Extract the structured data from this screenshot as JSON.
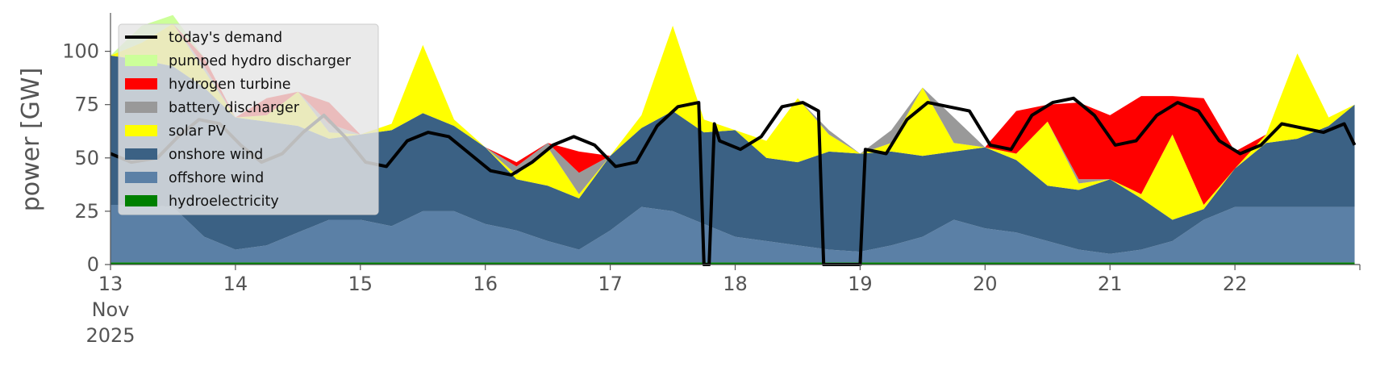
{
  "chart_data": {
    "type": "area",
    "stacked": true,
    "ylabel": "power [GW]",
    "xlabel": "",
    "ylim": [
      0,
      118
    ],
    "xlim": [
      "2025-11-13T00:00",
      "2025-11-23T00:00"
    ],
    "x_tick_labels": [
      {
        "date": "2025-11-13",
        "lines": [
          "13",
          "Nov",
          "2025"
        ]
      },
      {
        "date": "2025-11-14",
        "lines": [
          "14"
        ]
      },
      {
        "date": "2025-11-15",
        "lines": [
          "15"
        ]
      },
      {
        "date": "2025-11-16",
        "lines": [
          "16"
        ]
      },
      {
        "date": "2025-11-17",
        "lines": [
          "17"
        ]
      },
      {
        "date": "2025-11-18",
        "lines": [
          "18"
        ]
      },
      {
        "date": "2025-11-19",
        "lines": [
          "19"
        ]
      },
      {
        "date": "2025-11-20",
        "lines": [
          "20"
        ]
      },
      {
        "date": "2025-11-21",
        "lines": [
          "21"
        ]
      },
      {
        "date": "2025-11-22",
        "lines": [
          "22"
        ]
      }
    ],
    "y_ticks": [
      0,
      25,
      50,
      75,
      100
    ],
    "grid": false,
    "legend_position": "top-left",
    "x": [
      "2025-11-13T00:00",
      "2025-11-13T06:00",
      "2025-11-13T12:00",
      "2025-11-13T18:00",
      "2025-11-14T00:00",
      "2025-11-14T06:00",
      "2025-11-14T12:00",
      "2025-11-14T18:00",
      "2025-11-15T00:00",
      "2025-11-15T06:00",
      "2025-11-15T12:00",
      "2025-11-15T18:00",
      "2025-11-16T00:00",
      "2025-11-16T06:00",
      "2025-11-16T12:00",
      "2025-11-16T18:00",
      "2025-11-17T00:00",
      "2025-11-17T06:00",
      "2025-11-17T12:00",
      "2025-11-17T18:00",
      "2025-11-18T00:00",
      "2025-11-18T06:00",
      "2025-11-18T12:00",
      "2025-11-18T18:00",
      "2025-11-19T00:00",
      "2025-11-19T06:00",
      "2025-11-19T12:00",
      "2025-11-19T18:00",
      "2025-11-20T00:00",
      "2025-11-20T06:00",
      "2025-11-20T12:00",
      "2025-11-20T18:00",
      "2025-11-21T00:00",
      "2025-11-21T06:00",
      "2025-11-21T12:00",
      "2025-11-21T18:00",
      "2025-11-22T00:00",
      "2025-11-22T06:00",
      "2025-11-22T12:00",
      "2025-11-22T18:00",
      "2025-11-22T23:00"
    ],
    "series": [
      {
        "name": "hydroelectricity",
        "color": "#008000",
        "values": [
          1,
          1,
          1,
          1,
          1,
          1,
          1,
          1,
          1,
          1,
          1,
          1,
          1,
          1,
          1,
          1,
          1,
          1,
          1,
          1,
          1,
          1,
          1,
          1,
          1,
          1,
          1,
          1,
          1,
          1,
          1,
          1,
          1,
          1,
          1,
          1,
          1,
          1,
          1,
          1,
          1
        ]
      },
      {
        "name": "offshore wind",
        "color": "#5b80a6",
        "values": [
          27,
          27,
          26,
          12,
          6,
          8,
          14,
          20,
          20,
          17,
          24,
          24,
          18,
          15,
          10,
          6,
          15,
          26,
          24,
          18,
          12,
          10,
          8,
          6,
          5,
          8,
          12,
          20,
          16,
          14,
          10,
          6,
          4,
          6,
          10,
          20,
          26,
          26,
          26,
          26,
          26
        ]
      },
      {
        "name": "onshore wind",
        "color": "#3b6184",
        "values": [
          70,
          68,
          66,
          70,
          62,
          58,
          50,
          38,
          40,
          45,
          46,
          40,
          36,
          24,
          26,
          24,
          35,
          37,
          47,
          43,
          50,
          39,
          39,
          46,
          46,
          44,
          38,
          32,
          38,
          34,
          26,
          28,
          35,
          24,
          10,
          5,
          18,
          30,
          32,
          38,
          48
        ]
      },
      {
        "name": "solar PV",
        "color": "#ffff00",
        "values": [
          0,
          8,
          20,
          8,
          0,
          3,
          16,
          3,
          0,
          3,
          32,
          3,
          0,
          2,
          18,
          2,
          0,
          6,
          40,
          6,
          0,
          8,
          30,
          8,
          0,
          4,
          32,
          4,
          0,
          3,
          30,
          3,
          0,
          2,
          40,
          2,
          0,
          4,
          40,
          4,
          0
        ]
      },
      {
        "name": "battery discharger",
        "color": "#999999",
        "values": [
          0,
          0,
          0,
          2,
          0,
          0,
          0,
          4,
          0,
          0,
          0,
          0,
          0,
          4,
          2,
          10,
          0,
          0,
          0,
          0,
          0,
          0,
          0,
          2,
          0,
          6,
          0,
          12,
          0,
          0,
          0,
          2,
          0,
          0,
          0,
          0,
          0,
          0,
          0,
          0,
          0
        ]
      },
      {
        "name": "hydrogen turbine",
        "color": "#ff0000",
        "values": [
          0,
          0,
          0,
          4,
          0,
          8,
          0,
          10,
          0,
          0,
          0,
          0,
          0,
          2,
          0,
          10,
          0,
          0,
          0,
          0,
          0,
          0,
          0,
          0,
          0,
          0,
          0,
          0,
          0,
          20,
          8,
          36,
          30,
          46,
          18,
          50,
          8,
          0,
          0,
          0,
          0
        ]
      },
      {
        "name": "pumped hydro discharger",
        "color": "#ccff99",
        "values": [
          0,
          8,
          4,
          0,
          0,
          0,
          0,
          0,
          0,
          0,
          0,
          0,
          0,
          0,
          0,
          0,
          0,
          0,
          0,
          0,
          0,
          0,
          0,
          0,
          0,
          0,
          0,
          0,
          0,
          0,
          0,
          0,
          0,
          0,
          0,
          0,
          0,
          0,
          0,
          0,
          0
        ]
      }
    ],
    "line": {
      "name": "today's demand",
      "color": "#000000",
      "x": [
        "2025-11-13T00:00",
        "2025-11-13T04:00",
        "2025-11-13T09:00",
        "2025-11-13T13:00",
        "2025-11-13T17:00",
        "2025-11-13T21:00",
        "2025-11-14T01:00",
        "2025-11-14T05:00",
        "2025-11-14T09:00",
        "2025-11-14T13:00",
        "2025-11-14T17:00",
        "2025-11-14T21:00",
        "2025-11-15T01:00",
        "2025-11-15T05:00",
        "2025-11-15T09:00",
        "2025-11-15T13:00",
        "2025-11-15T17:00",
        "2025-11-15T21:00",
        "2025-11-16T01:00",
        "2025-11-16T05:00",
        "2025-11-16T09:00",
        "2025-11-16T13:00",
        "2025-11-16T17:00",
        "2025-11-16T21:00",
        "2025-11-17T01:00",
        "2025-11-17T05:00",
        "2025-11-17T09:00",
        "2025-11-17T13:00",
        "2025-11-17T17:00",
        "2025-11-17T18:00",
        "2025-11-17T19:00",
        "2025-11-17T20:00",
        "2025-11-17T21:00",
        "2025-11-18T01:00",
        "2025-11-18T05:00",
        "2025-11-18T09:00",
        "2025-11-18T13:00",
        "2025-11-18T16:00",
        "2025-11-18T17:00",
        "2025-11-18T22:00",
        "2025-11-19T00:00",
        "2025-11-19T01:00",
        "2025-11-19T05:00",
        "2025-11-19T09:00",
        "2025-11-19T13:00",
        "2025-11-19T17:00",
        "2025-11-19T21:00",
        "2025-11-20T01:00",
        "2025-11-20T05:00",
        "2025-11-20T09:00",
        "2025-11-20T13:00",
        "2025-11-20T17:00",
        "2025-11-20T21:00",
        "2025-11-21T01:00",
        "2025-11-21T05:00",
        "2025-11-21T09:00",
        "2025-11-21T13:00",
        "2025-11-21T17:00",
        "2025-11-21T21:00",
        "2025-11-22T01:00",
        "2025-11-22T05:00",
        "2025-11-22T09:00",
        "2025-11-22T13:00",
        "2025-11-22T17:00",
        "2025-11-22T21:00",
        "2025-11-22T23:00"
      ],
      "values": [
        52,
        48,
        50,
        60,
        68,
        66,
        56,
        48,
        52,
        62,
        70,
        60,
        48,
        46,
        58,
        62,
        60,
        52,
        44,
        42,
        48,
        56,
        60,
        56,
        46,
        48,
        65,
        74,
        76,
        0,
        0,
        66,
        58,
        54,
        60,
        74,
        76,
        72,
        0,
        0,
        0,
        54,
        52,
        68,
        76,
        74,
        72,
        56,
        54,
        70,
        76,
        78,
        70,
        56,
        58,
        70,
        76,
        72,
        58,
        52,
        56,
        66,
        64,
        62,
        66,
        56
      ]
    }
  },
  "legend": {
    "entries": [
      {
        "label": "today's demand",
        "swatch": "line",
        "color": "#000000"
      },
      {
        "label": "pumped hydro discharger",
        "swatch": "box",
        "color": "#ccff99"
      },
      {
        "label": "hydrogen turbine",
        "swatch": "box",
        "color": "#ff0000"
      },
      {
        "label": "battery discharger",
        "swatch": "box",
        "color": "#999999"
      },
      {
        "label": "solar PV",
        "swatch": "box",
        "color": "#ffff00"
      },
      {
        "label": "onshore wind",
        "swatch": "box",
        "color": "#3b6184"
      },
      {
        "label": "offshore wind",
        "swatch": "box",
        "color": "#5b80a6"
      },
      {
        "label": "hydroelectricity",
        "swatch": "box",
        "color": "#008000"
      }
    ]
  }
}
